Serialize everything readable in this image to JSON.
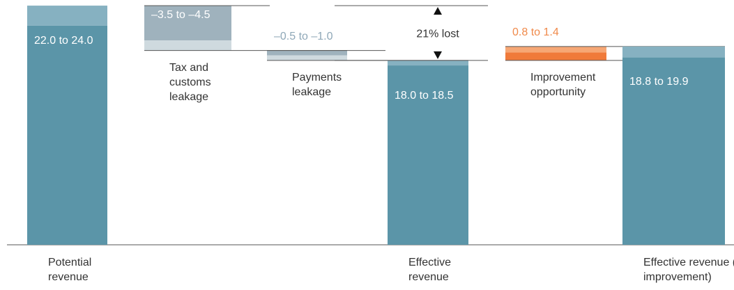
{
  "chart_data": {
    "type": "waterfall",
    "categories": [
      "Potential revenue",
      "Tax and customs leakage",
      "Payments leakage",
      "Effective revenue",
      "Improvement opportunity",
      "Effective revenue (after improvement)"
    ],
    "ranges": [
      [
        22.0,
        24.0
      ],
      [
        -3.5,
        -4.5
      ],
      [
        -0.5,
        -1.0
      ],
      [
        18.0,
        18.5
      ],
      [
        0.8,
        1.4
      ],
      [
        18.8,
        19.9
      ]
    ],
    "value_labels": [
      "22.0 to 24.0",
      "–3.5 to –4.5",
      "–0.5 to –1.0",
      "18.0 to 18.5",
      "0.8 to 1.4",
      "18.8 to 19.9"
    ],
    "kinds": [
      "total",
      "delta",
      "delta",
      "total",
      "delta",
      "total"
    ],
    "colors": [
      [
        "#5b95a8",
        "#86b1c1"
      ],
      [
        "#9fb2bd",
        "#cfdadf"
      ],
      [
        "#9fb2bd",
        "#cfdadf"
      ],
      [
        "#5b95a8",
        "#86b1c1"
      ],
      [
        "#f07a3a",
        "#f6a775"
      ],
      [
        "#5b95a8",
        "#86b1c1"
      ]
    ],
    "label_colors": [
      "#ffffff",
      "#ffffff",
      "#8fa8b8",
      "#ffffff",
      "#f08a4b",
      "#ffffff"
    ],
    "annotation": "21% lost"
  }
}
